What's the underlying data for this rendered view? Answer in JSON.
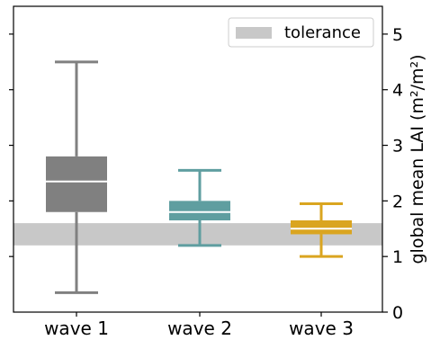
{
  "chart_data": {
    "type": "box",
    "categories": [
      "wave 1",
      "wave 2",
      "wave 3"
    ],
    "ylabel": "global mean LAI (m²/m²)",
    "yaxis_side": "right",
    "ylim": [
      0,
      5.5
    ],
    "yticks": [
      0,
      1,
      2,
      3,
      4,
      5
    ],
    "ytick_labels": [
      "0",
      "1",
      "2",
      "3",
      "4",
      "5"
    ],
    "grid": false,
    "legend": {
      "placement": "top-right",
      "entries": [
        {
          "label": "tolerance",
          "color": "#c8c8c8"
        }
      ]
    },
    "tolerance_band": {
      "low": 1.2,
      "high": 1.6,
      "color": "#c8c8c8"
    },
    "boxes": [
      {
        "category": "wave 1",
        "whisker_low": 0.35,
        "q1": 1.8,
        "median": 2.35,
        "q3": 2.8,
        "whisker_high": 4.5,
        "color": "#808080"
      },
      {
        "category": "wave 2",
        "whisker_low": 1.2,
        "q1": 1.65,
        "median": 1.8,
        "q3": 2.0,
        "whisker_high": 2.55,
        "color": "#5f9ea0"
      },
      {
        "category": "wave 3",
        "whisker_low": 1.0,
        "q1": 1.4,
        "median": 1.5,
        "q3": 1.65,
        "whisker_high": 1.95,
        "color": "#daa520"
      }
    ]
  }
}
